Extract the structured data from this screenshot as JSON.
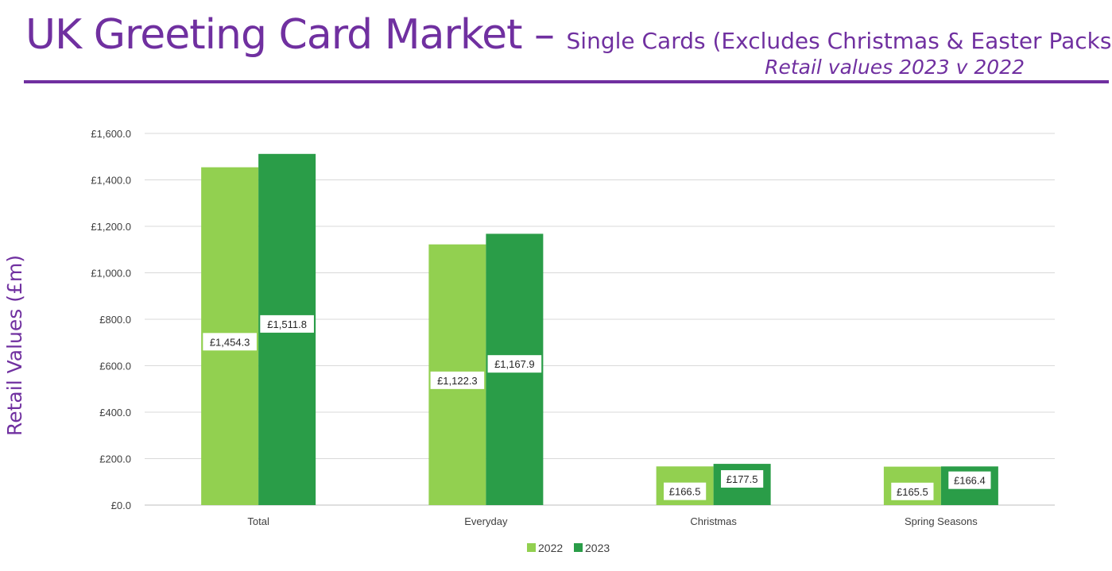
{
  "header": {
    "title": "UK Greeting Card Market –",
    "title_sub": "Single Cards (Excludes Christmas & Easter Packs)",
    "subtitle": "Retail values 2023 v 2022"
  },
  "colors": {
    "title": "#7030a0",
    "series_2022": "#92d050",
    "series_2023": "#2a9d48"
  },
  "chart_data": {
    "type": "bar",
    "ylabel": "Retail Values (£m)",
    "xlabel": "",
    "ylim": [
      0,
      1600
    ],
    "yticks": [
      0,
      200,
      400,
      600,
      800,
      1000,
      1200,
      1400,
      1600
    ],
    "ytick_labels": [
      "£0.0",
      "£200.0",
      "£400.0",
      "£600.0",
      "£800.0",
      "£1,000.0",
      "£1,200.0",
      "£1,400.0",
      "£1,600.0"
    ],
    "categories": [
      "Total",
      "Everyday",
      "Christmas",
      "Spring Seasons"
    ],
    "series": [
      {
        "name": "2022",
        "values": [
          1454.3,
          1122.3,
          166.5,
          165.5
        ],
        "labels": [
          "£1,454.3",
          "£1,122.3",
          "£166.5",
          "£165.5"
        ]
      },
      {
        "name": "2023",
        "values": [
          1511.8,
          1167.9,
          177.5,
          166.4
        ],
        "labels": [
          "£1,511.8",
          "£1,167.9",
          "£177.5",
          "£166.4"
        ]
      }
    ],
    "grid": true,
    "legend": "bottom"
  }
}
